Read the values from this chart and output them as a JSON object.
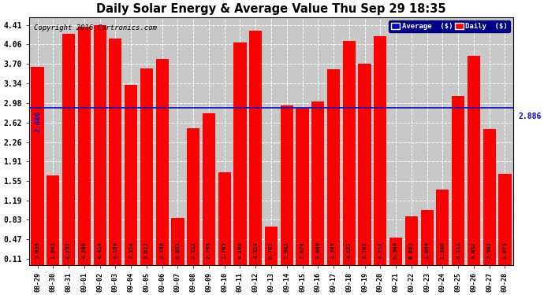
{
  "title": "Daily Solar Energy & Average Value Thu Sep 29 18:35",
  "copyright": "Copyright 2016 Cartronics.com",
  "categories": [
    "08-29",
    "08-30",
    "08-31",
    "09-01",
    "09-02",
    "09-03",
    "09-04",
    "09-05",
    "09-06",
    "09-07",
    "09-08",
    "09-09",
    "09-10",
    "09-11",
    "09-12",
    "09-13",
    "09-14",
    "09-15",
    "09-16",
    "09-17",
    "09-18",
    "09-19",
    "09-20",
    "09-21",
    "09-22",
    "09-23",
    "09-24",
    "09-25",
    "09-26",
    "09-27",
    "09-28"
  ],
  "values": [
    3.639,
    1.643,
    4.252,
    4.388,
    4.414,
    4.164,
    3.314,
    3.617,
    3.789,
    0.861,
    2.511,
    2.795,
    1.705,
    4.1,
    4.314,
    0.701,
    2.942,
    2.874,
    3.006,
    3.595,
    4.122,
    3.701,
    4.212,
    0.504,
    0.893,
    1.004,
    1.38,
    3.111,
    3.852,
    2.502,
    1.673
  ],
  "average_line": 2.886,
  "bar_color": "#ff0000",
  "average_line_color": "#0000cc",
  "background_color": "#ffffff",
  "grid_color": "#ffffff",
  "yticks": [
    0.11,
    0.47,
    0.83,
    1.19,
    1.55,
    1.91,
    2.26,
    2.62,
    2.98,
    3.34,
    3.7,
    4.06,
    4.41
  ],
  "ylim_min": 0.0,
  "ylim_max": 4.56,
  "legend_avg_color": "#0000cc",
  "legend_daily_color": "#ff0000",
  "avg_label": "2.886"
}
